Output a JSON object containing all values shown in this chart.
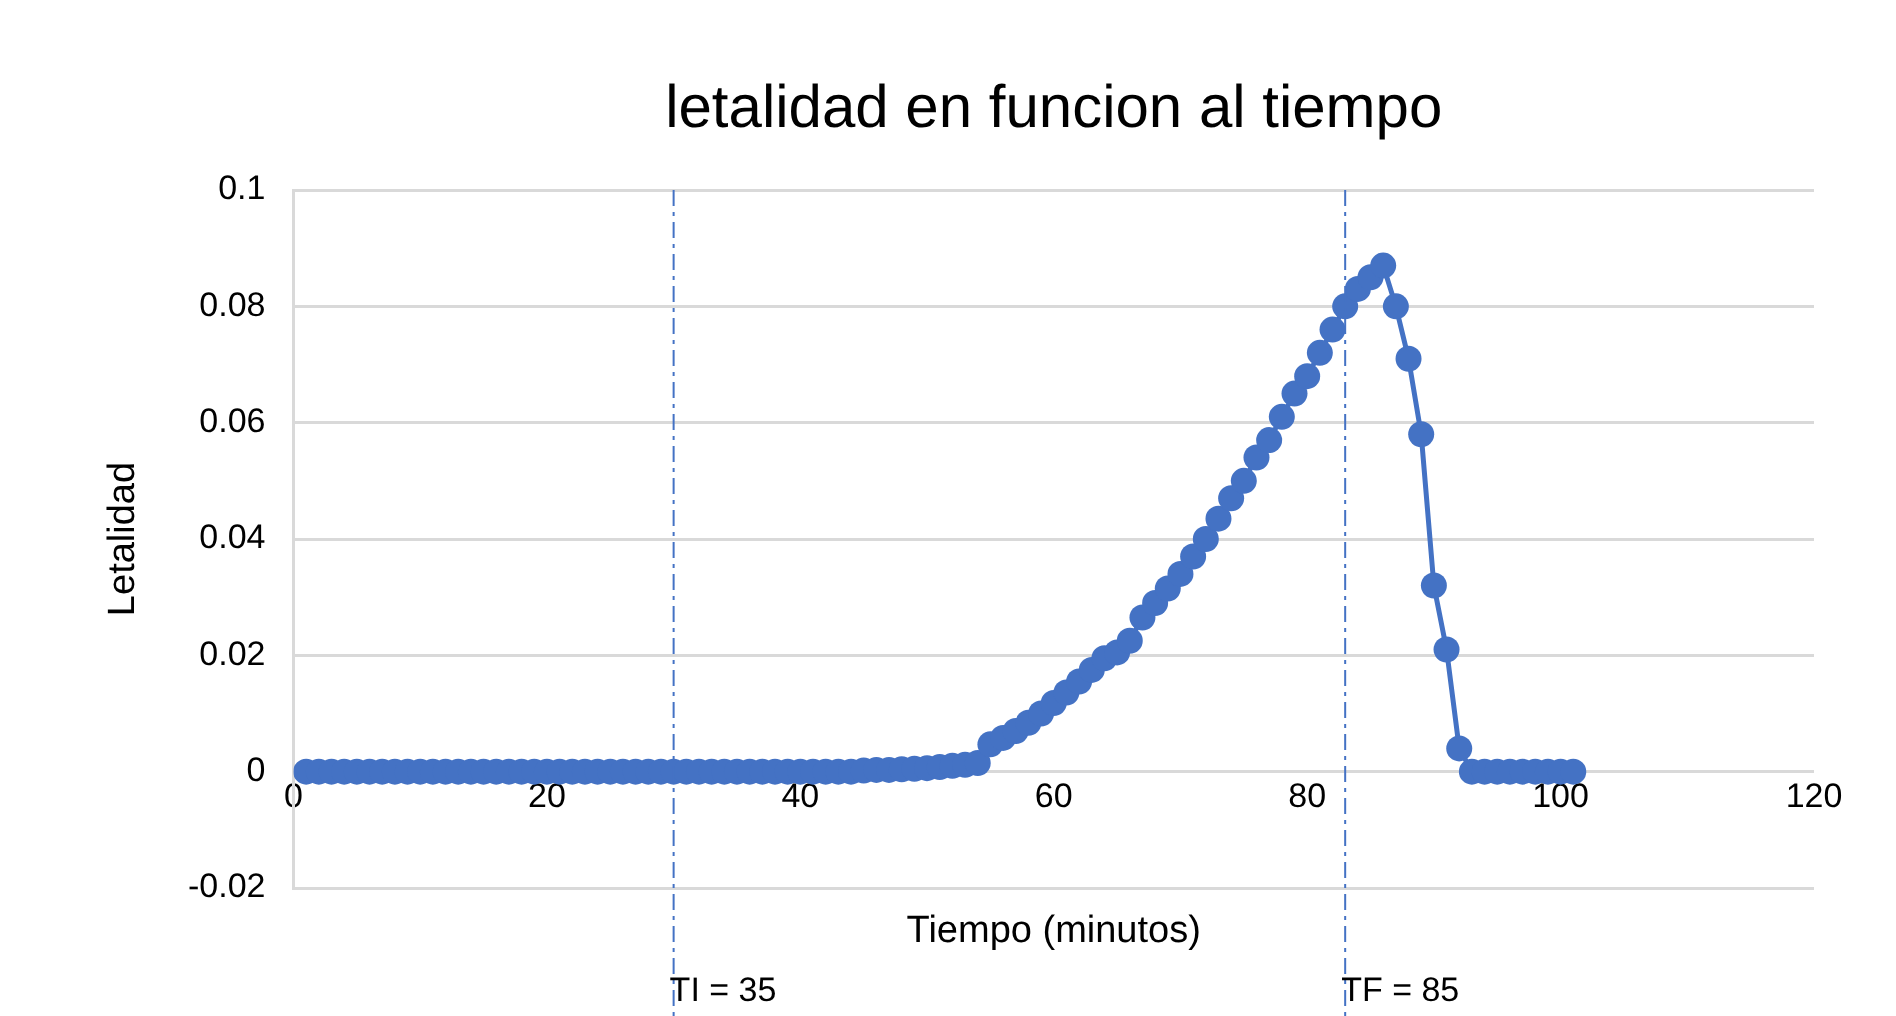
{
  "chart_data": {
    "type": "line",
    "title": "letalidad en funcion al tiempo",
    "xlabel": "Tiempo (minutos)",
    "ylabel": "Letalidad",
    "x": [
      1,
      2,
      3,
      4,
      5,
      6,
      7,
      8,
      9,
      10,
      11,
      12,
      13,
      14,
      15,
      16,
      17,
      18,
      19,
      20,
      21,
      22,
      23,
      24,
      25,
      26,
      27,
      28,
      29,
      30,
      31,
      32,
      33,
      34,
      35,
      36,
      37,
      38,
      39,
      40,
      41,
      42,
      43,
      44,
      45,
      46,
      47,
      48,
      49,
      50,
      51,
      52,
      53,
      54,
      55,
      56,
      57,
      58,
      59,
      60,
      61,
      62,
      63,
      64,
      65,
      66,
      67,
      68,
      69,
      70,
      71,
      72,
      73,
      74,
      75,
      76,
      77,
      78,
      79,
      80,
      81,
      82,
      83,
      84,
      85,
      86,
      87,
      88,
      89,
      90,
      91,
      92,
      93,
      94,
      95,
      96,
      97,
      98,
      99,
      100,
      101
    ],
    "series": [
      {
        "color": "#4472c4",
        "values": [
          0,
          0,
          0,
          0,
          0,
          0,
          0,
          0,
          0,
          0,
          0,
          0,
          0,
          0,
          0,
          0,
          0,
          0,
          0,
          0,
          0,
          0,
          0,
          0,
          0,
          0,
          0,
          0,
          0,
          0,
          0,
          0,
          0,
          0,
          0,
          0,
          0,
          0,
          0,
          0,
          0,
          0,
          0,
          0,
          0.0002,
          0.0003,
          0.0003,
          0.0004,
          0.0005,
          0.0006,
          0.0008,
          0.001,
          0.0012,
          0.0015,
          0.0047,
          0.0058,
          0.007,
          0.0084,
          0.01,
          0.0118,
          0.0136,
          0.0155,
          0.0175,
          0.0195,
          0.0205,
          0.0225,
          0.0265,
          0.029,
          0.0315,
          0.034,
          0.037,
          0.04,
          0.0435,
          0.047,
          0.05,
          0.054,
          0.057,
          0.061,
          0.065,
          0.068,
          0.072,
          0.076,
          0.08,
          0.083,
          0.085,
          0.087,
          0.08,
          0.071,
          0.058,
          0.032,
          0.021,
          0.004,
          0,
          0,
          0,
          0,
          0,
          0,
          0,
          0,
          0
        ]
      }
    ],
    "xlim": [
      0,
      120
    ],
    "xticks": [
      0,
      20,
      40,
      60,
      80,
      100,
      120
    ],
    "ylim": [
      -0.02,
      0.1
    ],
    "yticks": [
      -0.02,
      0,
      0.02,
      0.04,
      0.06,
      0.08,
      0.1
    ],
    "grid": "y",
    "legend": false,
    "marker": "circle",
    "line_style": "solid",
    "ref_lines": [
      {
        "axis": "x",
        "value": 30,
        "color": "#4472c4",
        "line_style": "dashed"
      },
      {
        "axis": "x",
        "value": 83,
        "color": "#4472c4",
        "line_style": "dashed"
      }
    ],
    "annotations": [
      "TI = 35",
      "TF = 85"
    ]
  }
}
